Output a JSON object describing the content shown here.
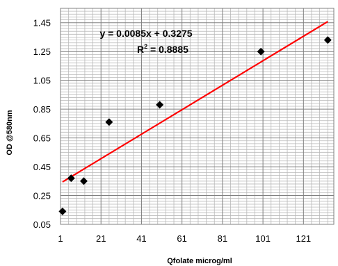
{
  "chart_data": {
    "type": "scatter",
    "xlabel": "Qfolate microg/ml",
    "ylabel": "OD @580nm",
    "xlim": [
      1,
      136
    ],
    "ylim": [
      0.05,
      1.55
    ],
    "xticks": [
      "1",
      "21",
      "41",
      "61",
      "81",
      "101",
      "121"
    ],
    "yticks": [
      "0.05",
      "0.25",
      "0.45",
      "0.65",
      "0.85",
      "1.05",
      "1.25",
      "1.45"
    ],
    "grid": {
      "x_major": true,
      "y_major": true,
      "x_minor": true,
      "y_minor": true
    },
    "series": [
      {
        "marker": "diamond",
        "color": "#000000",
        "points": [
          {
            "x": 2,
            "y": 0.14
          },
          {
            "x": 6.25,
            "y": 0.37
          },
          {
            "x": 12.5,
            "y": 0.35
          },
          {
            "x": 25,
            "y": 0.76
          },
          {
            "x": 50,
            "y": 0.88
          },
          {
            "x": 100,
            "y": 1.25
          },
          {
            "x": 133,
            "y": 1.33
          }
        ]
      }
    ],
    "trendline": {
      "type": "linear",
      "slope": 0.0085,
      "intercept": 0.3275,
      "color": "#ff0000",
      "x_range": [
        2,
        133
      ]
    },
    "annotations": {
      "equation": "y = 0.0085x + 0.3275",
      "r2_prefix": "R",
      "r2_sup": "2",
      "r2_value": " = 0.8885"
    }
  }
}
